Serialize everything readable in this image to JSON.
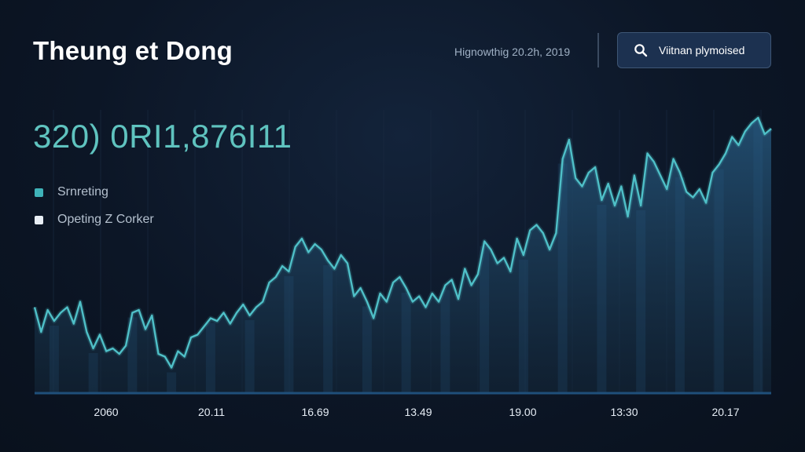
{
  "header": {
    "title": "Theung et Dong",
    "datestamp": "Hignowthig 20.2h, 2019",
    "search_label": "Viitnan plymoised"
  },
  "summary": {
    "value": "320) 0RI1,876I11"
  },
  "legend": {
    "items": [
      {
        "label": "Srnreting",
        "color": "#3fb3b9"
      },
      {
        "label": "Opeting Z Corker",
        "color": "#e8eef5"
      }
    ]
  },
  "colors": {
    "line": "#4fc0c8",
    "fill": "#1b3a55",
    "baseline": "#1f4f7a"
  },
  "chart_data": {
    "type": "area",
    "xlabel": "",
    "ylabel": "",
    "grid": true,
    "legend_position": "top-left",
    "x_ticks": [
      "2060",
      "20.11",
      "16.69",
      "13.49",
      "19.00",
      "13:30",
      "20.17"
    ],
    "ylim": [
      0,
      100
    ],
    "series": [
      {
        "name": "Srnreting",
        "values": [
          31,
          22,
          30,
          26,
          29,
          31,
          25,
          33,
          22,
          16,
          21,
          15,
          16,
          14,
          17,
          29,
          30,
          23,
          28,
          14,
          13,
          9,
          15,
          13,
          20,
          21,
          24,
          27,
          26,
          29,
          25,
          29,
          32,
          28,
          31,
          33,
          40,
          42,
          46,
          44,
          53,
          56,
          51,
          54,
          52,
          48,
          45,
          50,
          47,
          35,
          38,
          33,
          27,
          36,
          33,
          40,
          42,
          38,
          33,
          35,
          31,
          36,
          33,
          39,
          41,
          34,
          45,
          39,
          43,
          55,
          52,
          47,
          49,
          44,
          56,
          50,
          59,
          61,
          58,
          52,
          58,
          85,
          92,
          78,
          75,
          80,
          82,
          70,
          76,
          68,
          75,
          64,
          79,
          68,
          87,
          84,
          79,
          74,
          85,
          80,
          73,
          71,
          74,
          69,
          80,
          83,
          87,
          93,
          90,
          95,
          98,
          100,
          94,
          96
        ]
      }
    ]
  }
}
